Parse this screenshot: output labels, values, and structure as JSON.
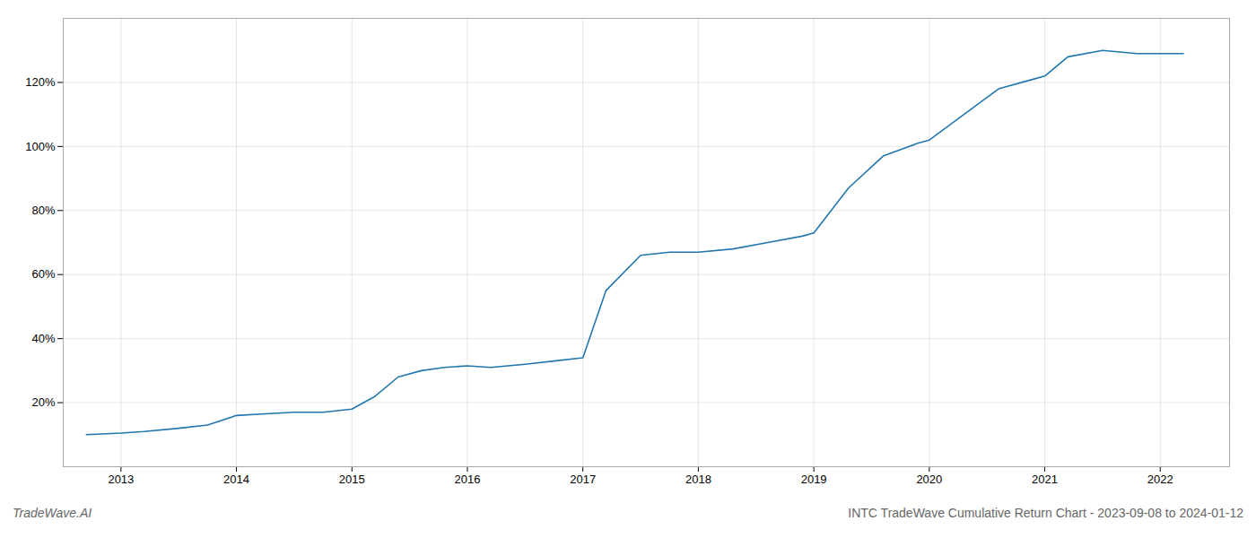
{
  "chart_data": {
    "type": "line",
    "title": "INTC TradeWave Cumulative Return Chart - 2023-09-08 to 2024-01-12",
    "annotations": [
      {
        "text": "TradeWave.AI"
      }
    ],
    "color": "#2176ae",
    "grid": true,
    "x": [
      2012.7,
      2013.0,
      2013.2,
      2013.5,
      2013.75,
      2014.0,
      2014.25,
      2014.5,
      2014.75,
      2015.0,
      2015.2,
      2015.4,
      2015.6,
      2015.8,
      2016.0,
      2016.2,
      2016.5,
      2016.75,
      2017.0,
      2017.2,
      2017.5,
      2017.75,
      2018.0,
      2018.3,
      2018.6,
      2018.9,
      2019.0,
      2019.3,
      2019.6,
      2019.9,
      2020.0,
      2020.3,
      2020.6,
      2020.9,
      2021.0,
      2021.2,
      2021.5,
      2021.8,
      2022.0,
      2022.2
    ],
    "values": [
      10,
      10.5,
      11,
      12,
      13,
      16,
      16.5,
      17,
      17,
      18,
      22,
      28,
      30,
      31,
      31.5,
      31,
      32,
      33,
      34,
      55,
      66,
      67,
      67,
      68,
      70,
      72,
      73,
      87,
      97,
      101,
      102,
      110,
      118,
      121,
      122,
      128,
      130,
      129,
      129,
      129
    ],
    "xlim": [
      2012.5,
      2022.6
    ],
    "xticks": [
      2013,
      2014,
      2015,
      2016,
      2017,
      2018,
      2019,
      2020,
      2021,
      2022
    ],
    "ylim": [
      0,
      140
    ],
    "yticks": [
      {
        "value": 20,
        "label": "20%"
      },
      {
        "value": 40,
        "label": "40%"
      },
      {
        "value": 60,
        "label": "60%"
      },
      {
        "value": 80,
        "label": "80%"
      },
      {
        "value": 100,
        "label": "100%"
      },
      {
        "value": 120,
        "label": "120%"
      }
    ]
  }
}
